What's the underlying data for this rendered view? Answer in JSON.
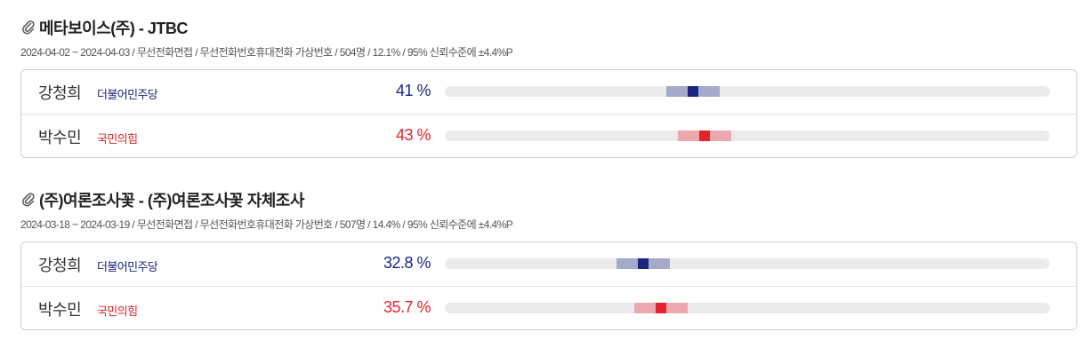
{
  "colors": {
    "democratic": "#1a2580",
    "democratic_range": "#a5aacb",
    "ppp": "#e3242b",
    "ppp_range": "#eba8ad",
    "track": "#ebebeb"
  },
  "chart_data": [
    {
      "type": "bar",
      "title": "메타보이스(주) - JTBC",
      "meta": "2024-04-02 ~ 2024-04-03 / 무선전화면접 / 무선전화번호휴대전화 가상번호 / 504명 / 12.1% / 95% 신뢰수준에 ±4.4%P",
      "margin_of_error": 4.4,
      "xlim": [
        0,
        100
      ],
      "series": [
        {
          "name": "강청희",
          "party": "더불어민주당",
          "value": 41,
          "label": "41 %",
          "color_key": "democratic"
        },
        {
          "name": "박수민",
          "party": "국민의힘",
          "value": 43,
          "label": "43 %",
          "color_key": "ppp"
        }
      ]
    },
    {
      "type": "bar",
      "title": "(주)여론조사꽃 - (주)여론조사꽃 자체조사",
      "meta": "2024-03-18 ~ 2024-03-19 / 무선전화면접 / 무선전화번호휴대전화 가상번호 / 507명 / 14.4% / 95% 신뢰수준에 ±4.4%P",
      "margin_of_error": 4.4,
      "xlim": [
        0,
        100
      ],
      "series": [
        {
          "name": "강청희",
          "party": "더불어민주당",
          "value": 32.8,
          "label": "32.8 %",
          "color_key": "democratic"
        },
        {
          "name": "박수민",
          "party": "국민의힘",
          "value": 35.7,
          "label": "35.7 %",
          "color_key": "ppp"
        }
      ]
    }
  ]
}
